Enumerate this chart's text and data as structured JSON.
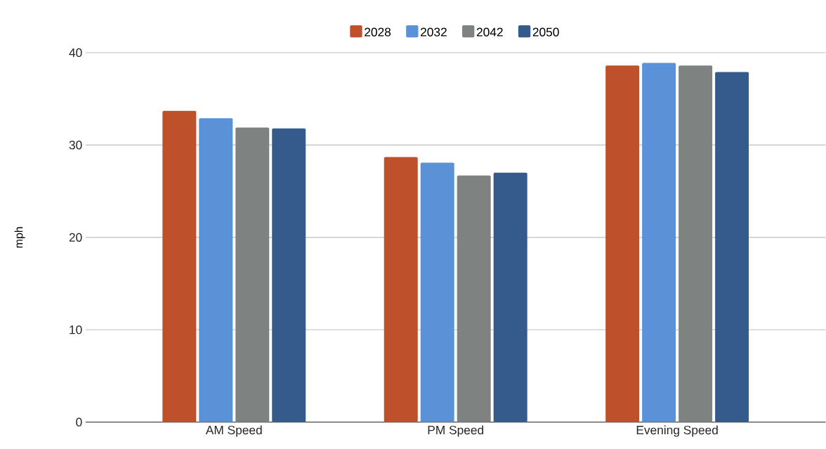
{
  "chart_data": {
    "type": "bar",
    "ylabel": "mph",
    "categories": [
      "AM Speed",
      "PM Speed",
      "Evening Speed"
    ],
    "series": [
      {
        "name": "2028",
        "color": "#be502c",
        "values": [
          33.7,
          28.7,
          38.6
        ]
      },
      {
        "name": "2032",
        "color": "#5b91d6",
        "values": [
          32.9,
          28.1,
          38.9
        ]
      },
      {
        "name": "2042",
        "color": "#7e8382",
        "values": [
          31.9,
          26.7,
          38.6
        ]
      },
      {
        "name": "2050",
        "color": "#355a8c",
        "values": [
          31.8,
          27.0,
          37.9
        ]
      }
    ],
    "ylim": [
      0,
      40
    ],
    "yticks": [
      0,
      10,
      20,
      30,
      40
    ],
    "grid": "y",
    "legend": "top"
  }
}
